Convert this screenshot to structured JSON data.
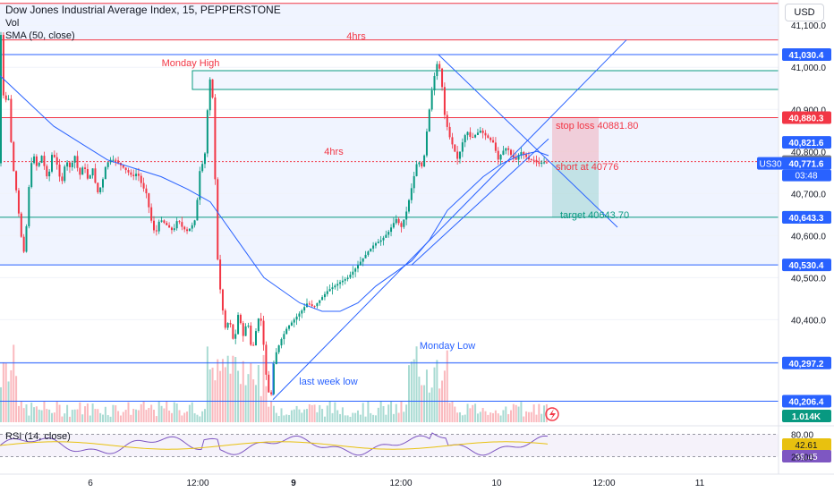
{
  "header": {
    "title": "Dow Jones Industrial Average Index, 15, PEPPERSTONE",
    "vol_label": "Vol",
    "sma_label": "SMA (50, close)"
  },
  "currency_button": "USD",
  "chart_data": {
    "type": "candlestick",
    "title": "Dow Jones Industrial Average Index, 15, PEPPERSTONE",
    "symbol": "US30",
    "countdown": "03:48",
    "ylim": [
      40150,
      41160
    ],
    "y_ticks": [
      41100,
      41000,
      40900,
      40800,
      40700,
      40600,
      40500,
      40400,
      40300
    ],
    "y_tick_labels": [
      "41,100.0",
      "41,000.0",
      "40,900.0",
      "40,800.0",
      "40,700.0",
      "40,600.0",
      "40,500.0",
      "40,400.0",
      "40,300.0"
    ],
    "x_tick_labels": [
      "6",
      "12:00",
      "9",
      "12:00",
      "10",
      "12:00",
      "11"
    ],
    "x_tick_bold": [
      false,
      false,
      true,
      false,
      false,
      false,
      false
    ],
    "price_labels": [
      {
        "text": "41,030.4",
        "value": 41030.4,
        "color": "#2962ff"
      },
      {
        "text": "40,880.3",
        "value": 40880.3,
        "color": "#f23645"
      },
      {
        "text": "40,821.6",
        "value": 40821.6,
        "color": "#2962ff"
      },
      {
        "text": "40,776.0",
        "value": 40776.0,
        "color": "#787b86"
      },
      {
        "text": "40,771.6",
        "value": 40771.6,
        "color": "#2962ff"
      },
      {
        "text": "40,643.7",
        "value": 40643.7,
        "color": "#089981"
      },
      {
        "text": "40,643.3",
        "value": 40643.3,
        "color": "#2962ff"
      },
      {
        "text": "40,530.4",
        "value": 40530.4,
        "color": "#2962ff"
      },
      {
        "text": "40,297.2",
        "value": 40297.2,
        "color": "#2962ff"
      },
      {
        "text": "40,206.4",
        "value": 40206.4,
        "color": "#2962ff"
      }
    ],
    "volume_label": "1.014K",
    "annotations": [
      {
        "text": "4hrs",
        "near": 41120
      },
      {
        "text": "Monday High",
        "near": 41065
      },
      {
        "text": "4hrs",
        "near": 40800
      },
      {
        "text": "stop loss 40881.80",
        "value": 40881.8
      },
      {
        "text": "short at 40776",
        "value": 40776
      },
      {
        "text": "target 40643.70",
        "value": 40643.7
      },
      {
        "text": "Monday Low",
        "near": 40320
      },
      {
        "text": "last week low",
        "near": 40210
      }
    ],
    "horizontal_levels": [
      {
        "value": 41152,
        "color": "#f23645"
      },
      {
        "value": 41065,
        "color": "#f23645"
      },
      {
        "value": 41030.4,
        "color": "#2962ff"
      },
      {
        "value": 40880.3,
        "color": "#f23645"
      },
      {
        "value": 40776,
        "color": "#f23645",
        "style": "dotted"
      },
      {
        "value": 40643.7,
        "color": "#089981"
      },
      {
        "value": 40530.4,
        "color": "#2962ff"
      },
      {
        "value": 40297.2,
        "color": "#2962ff"
      },
      {
        "value": 40206.4,
        "color": "#2962ff"
      }
    ],
    "zones": [
      {
        "from": 41065,
        "to": 41152,
        "color": "#2962ff"
      },
      {
        "from": 40880.3,
        "to": 40530.4,
        "color": "#2962ff"
      }
    ],
    "trade": {
      "entry": 40776,
      "stop_loss": 40881.8,
      "target": 40643.7
    },
    "rsi": {
      "label": "RSI (14, close)",
      "levels": [
        80,
        20
      ],
      "value_labels": [
        {
          "text": "80.00",
          "value": 80,
          "color": "#787b86"
        },
        {
          "text": "42.61",
          "value": 42.61,
          "color": "#e8c10f"
        },
        {
          "text": "39.45",
          "value": 39.45,
          "color": "#7e57c2"
        },
        {
          "text": "20.00",
          "value": 20,
          "color": "#787b86"
        }
      ]
    },
    "price_path": [
      [
        0,
        40980
      ],
      [
        3,
        41100
      ],
      [
        6,
        40880
      ],
      [
        10,
        40960
      ],
      [
        15,
        40780
      ],
      [
        20,
        40700
      ],
      [
        25,
        40600
      ],
      [
        29,
        40550
      ],
      [
        33,
        40700
      ],
      [
        38,
        40800
      ],
      [
        43,
        40760
      ],
      [
        48,
        40790
      ],
      [
        55,
        40730
      ],
      [
        60,
        40800
      ],
      [
        65,
        40770
      ],
      [
        70,
        40720
      ],
      [
        75,
        40780
      ],
      [
        80,
        40760
      ],
      [
        85,
        40790
      ],
      [
        90,
        40740
      ],
      [
        95,
        40770
      ],
      [
        100,
        40730
      ],
      [
        105,
        40760
      ],
      [
        110,
        40700
      ],
      [
        115,
        40720
      ],
      [
        120,
        40770
      ],
      [
        125,
        40780
      ],
      [
        130,
        40780
      ],
      [
        135,
        40770
      ],
      [
        140,
        40760
      ],
      [
        145,
        40750
      ],
      [
        150,
        40740
      ],
      [
        155,
        40750
      ],
      [
        160,
        40720
      ],
      [
        165,
        40700
      ],
      [
        170,
        40640
      ],
      [
        175,
        40600
      ],
      [
        180,
        40640
      ],
      [
        185,
        40630
      ],
      [
        190,
        40620
      ],
      [
        195,
        40610
      ],
      [
        200,
        40640
      ],
      [
        205,
        40620
      ],
      [
        210,
        40610
      ],
      [
        215,
        40620
      ],
      [
        220,
        40640
      ],
      [
        225,
        40760
      ],
      [
        230,
        40780
      ],
      [
        235,
        40960
      ],
      [
        238,
        40990
      ],
      [
        241,
        40800
      ],
      [
        244,
        40560
      ],
      [
        248,
        40460
      ],
      [
        253,
        40380
      ],
      [
        258,
        40400
      ],
      [
        263,
        40340
      ],
      [
        268,
        40420
      ],
      [
        273,
        40360
      ],
      [
        278,
        40400
      ],
      [
        283,
        40320
      ],
      [
        288,
        40380
      ],
      [
        292,
        40420
      ],
      [
        296,
        40340
      ],
      [
        300,
        40240
      ],
      [
        304,
        40210
      ],
      [
        308,
        40310
      ],
      [
        315,
        40350
      ],
      [
        322,
        40380
      ],
      [
        330,
        40400
      ],
      [
        338,
        40420
      ],
      [
        345,
        40440
      ],
      [
        352,
        40430
      ],
      [
        360,
        40450
      ],
      [
        368,
        40470
      ],
      [
        375,
        40480
      ],
      [
        382,
        40490
      ],
      [
        390,
        40500
      ],
      [
        398,
        40520
      ],
      [
        405,
        40540
      ],
      [
        412,
        40560
      ],
      [
        420,
        40580
      ],
      [
        428,
        40590
      ],
      [
        436,
        40610
      ],
      [
        444,
        40640
      ],
      [
        450,
        40620
      ],
      [
        456,
        40660
      ],
      [
        462,
        40720
      ],
      [
        468,
        40780
      ],
      [
        474,
        40760
      ],
      [
        480,
        40880
      ],
      [
        485,
        40960
      ],
      [
        490,
        41010
      ],
      [
        494,
        40990
      ],
      [
        498,
        40890
      ],
      [
        503,
        40840
      ],
      [
        508,
        40810
      ],
      [
        513,
        40780
      ],
      [
        518,
        40820
      ],
      [
        523,
        40850
      ],
      [
        528,
        40830
      ],
      [
        533,
        40840
      ],
      [
        538,
        40850
      ],
      [
        543,
        40840
      ],
      [
        548,
        40830
      ],
      [
        553,
        40820
      ],
      [
        558,
        40780
      ],
      [
        563,
        40800
      ],
      [
        568,
        40810
      ],
      [
        573,
        40790
      ],
      [
        578,
        40780
      ],
      [
        583,
        40800
      ],
      [
        588,
        40790
      ],
      [
        593,
        40780
      ],
      [
        598,
        40780
      ],
      [
        603,
        40770
      ],
      [
        608,
        40775
      ],
      [
        613,
        40772
      ]
    ],
    "sma50": [
      [
        0,
        40980
      ],
      [
        30,
        40920
      ],
      [
        60,
        40860
      ],
      [
        90,
        40820
      ],
      [
        120,
        40780
      ],
      [
        150,
        40760
      ],
      [
        180,
        40740
      ],
      [
        210,
        40710
      ],
      [
        235,
        40680
      ],
      [
        255,
        40620
      ],
      [
        275,
        40560
      ],
      [
        295,
        40500
      ],
      [
        315,
        40470
      ],
      [
        335,
        40440
      ],
      [
        360,
        40420
      ],
      [
        380,
        40420
      ],
      [
        400,
        40440
      ],
      [
        420,
        40480
      ],
      [
        440,
        40510
      ],
      [
        460,
        40540
      ],
      [
        480,
        40590
      ],
      [
        500,
        40660
      ],
      [
        520,
        40700
      ],
      [
        540,
        40740
      ],
      [
        560,
        40770
      ],
      [
        580,
        40790
      ],
      [
        600,
        40800
      ],
      [
        613,
        40790
      ]
    ],
    "trendlines": [
      {
        "from": [
          305,
          40210
        ],
        "to": [
          700,
          41065
        ],
        "color": "#2962ff"
      },
      {
        "from": [
          460,
          40530
        ],
        "to": [
          613,
          40830
        ],
        "color": "#2962ff"
      },
      {
        "from": [
          490,
          41030
        ],
        "to": [
          690,
          40620
        ],
        "color": "#2962ff"
      }
    ]
  }
}
